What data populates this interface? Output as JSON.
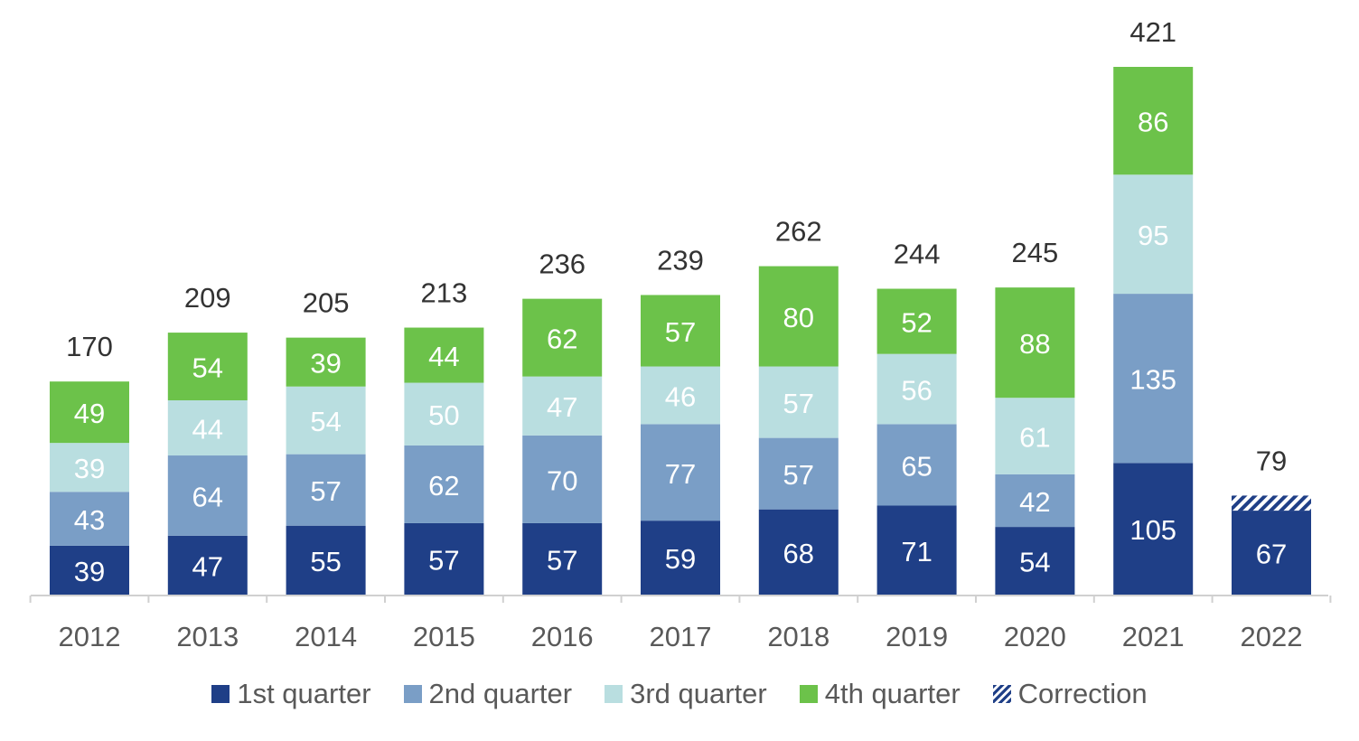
{
  "chart_data": {
    "type": "bar",
    "stacked": true,
    "categories": [
      "2012",
      "2013",
      "2014",
      "2015",
      "2016",
      "2017",
      "2018",
      "2019",
      "2020",
      "2021",
      "2022"
    ],
    "series": [
      {
        "name": "1st quarter",
        "color": "#1f3f87",
        "values": [
          39,
          47,
          55,
          57,
          57,
          59,
          68,
          71,
          54,
          105,
          67
        ]
      },
      {
        "name": "2nd quarter",
        "color": "#7a9ec6",
        "values": [
          43,
          64,
          57,
          62,
          70,
          77,
          57,
          65,
          42,
          135,
          null
        ]
      },
      {
        "name": "3rd quarter",
        "color": "#b9dee0",
        "values": [
          39,
          44,
          54,
          50,
          47,
          46,
          57,
          56,
          61,
          95,
          null
        ]
      },
      {
        "name": "4th quarter",
        "color": "#6cc24a",
        "values": [
          49,
          54,
          39,
          44,
          62,
          57,
          80,
          52,
          88,
          86,
          null
        ]
      },
      {
        "name": "Correction",
        "color": "#1f3f87",
        "pattern": "diagonal-hatch",
        "values": [
          null,
          null,
          null,
          null,
          null,
          null,
          null,
          null,
          null,
          null,
          12
        ]
      }
    ],
    "totals": [
      170,
      209,
      205,
      213,
      236,
      239,
      262,
      244,
      245,
      421,
      79
    ],
    "ylim": [
      0,
      421
    ],
    "grid": false,
    "legend_position": "bottom",
    "text_colors": {
      "axis": "#595959",
      "total": "#333333",
      "inside_label": "#ffffff"
    }
  }
}
